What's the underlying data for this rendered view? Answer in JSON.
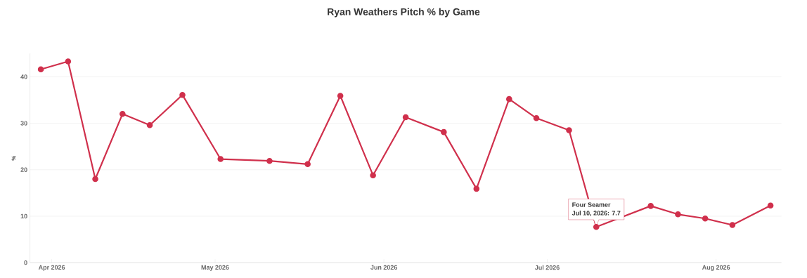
{
  "chart_data": {
    "type": "line",
    "title": "Ryan Weathers Pitch % by Game",
    "ylabel": "%",
    "x": [
      "2026-03-30",
      "2026-04-04",
      "2026-04-09",
      "2026-04-14",
      "2026-04-19",
      "2026-04-25",
      "2026-05-02",
      "2026-05-11",
      "2026-05-18",
      "2026-05-24",
      "2026-05-30",
      "2026-06-05",
      "2026-06-12",
      "2026-06-18",
      "2026-06-24",
      "2026-06-29",
      "2026-07-05",
      "2026-07-10",
      "2026-07-20",
      "2026-07-25",
      "2026-07-30",
      "2026-08-04",
      "2026-08-11"
    ],
    "series": [
      {
        "color": "#d0304c",
        "values": [
          41.6,
          43.3,
          18.0,
          32.0,
          29.6,
          36.1,
          22.3,
          21.9,
          21.2,
          35.9,
          18.8,
          31.3,
          28.1,
          15.9,
          35.2,
          31.1,
          28.5,
          7.7,
          12.2,
          10.4,
          9.5,
          8.1,
          12.3
        ]
      }
    ],
    "xlim": [
      "2026-03-28",
      "2026-08-13"
    ],
    "xticks": [
      {
        "value": "2026-04-01",
        "label": "Apr 2026"
      },
      {
        "value": "2026-05-01",
        "label": "May 2026"
      },
      {
        "value": "2026-06-01",
        "label": "Jun 2026"
      },
      {
        "value": "2026-07-01",
        "label": "Jul 2026"
      },
      {
        "value": "2026-08-01",
        "label": "Aug 2026"
      }
    ],
    "ylim": [
      0,
      45
    ],
    "yticks": [
      0,
      10,
      20,
      30,
      40
    ],
    "grid": "y",
    "marker": "circle",
    "line_style": "solid",
    "annotations": [
      "Four Seamer",
      {
        "text": "Jul 10, 2026: 7.7",
        "x": "2026-07-10",
        "y": 7.7
      }
    ]
  }
}
